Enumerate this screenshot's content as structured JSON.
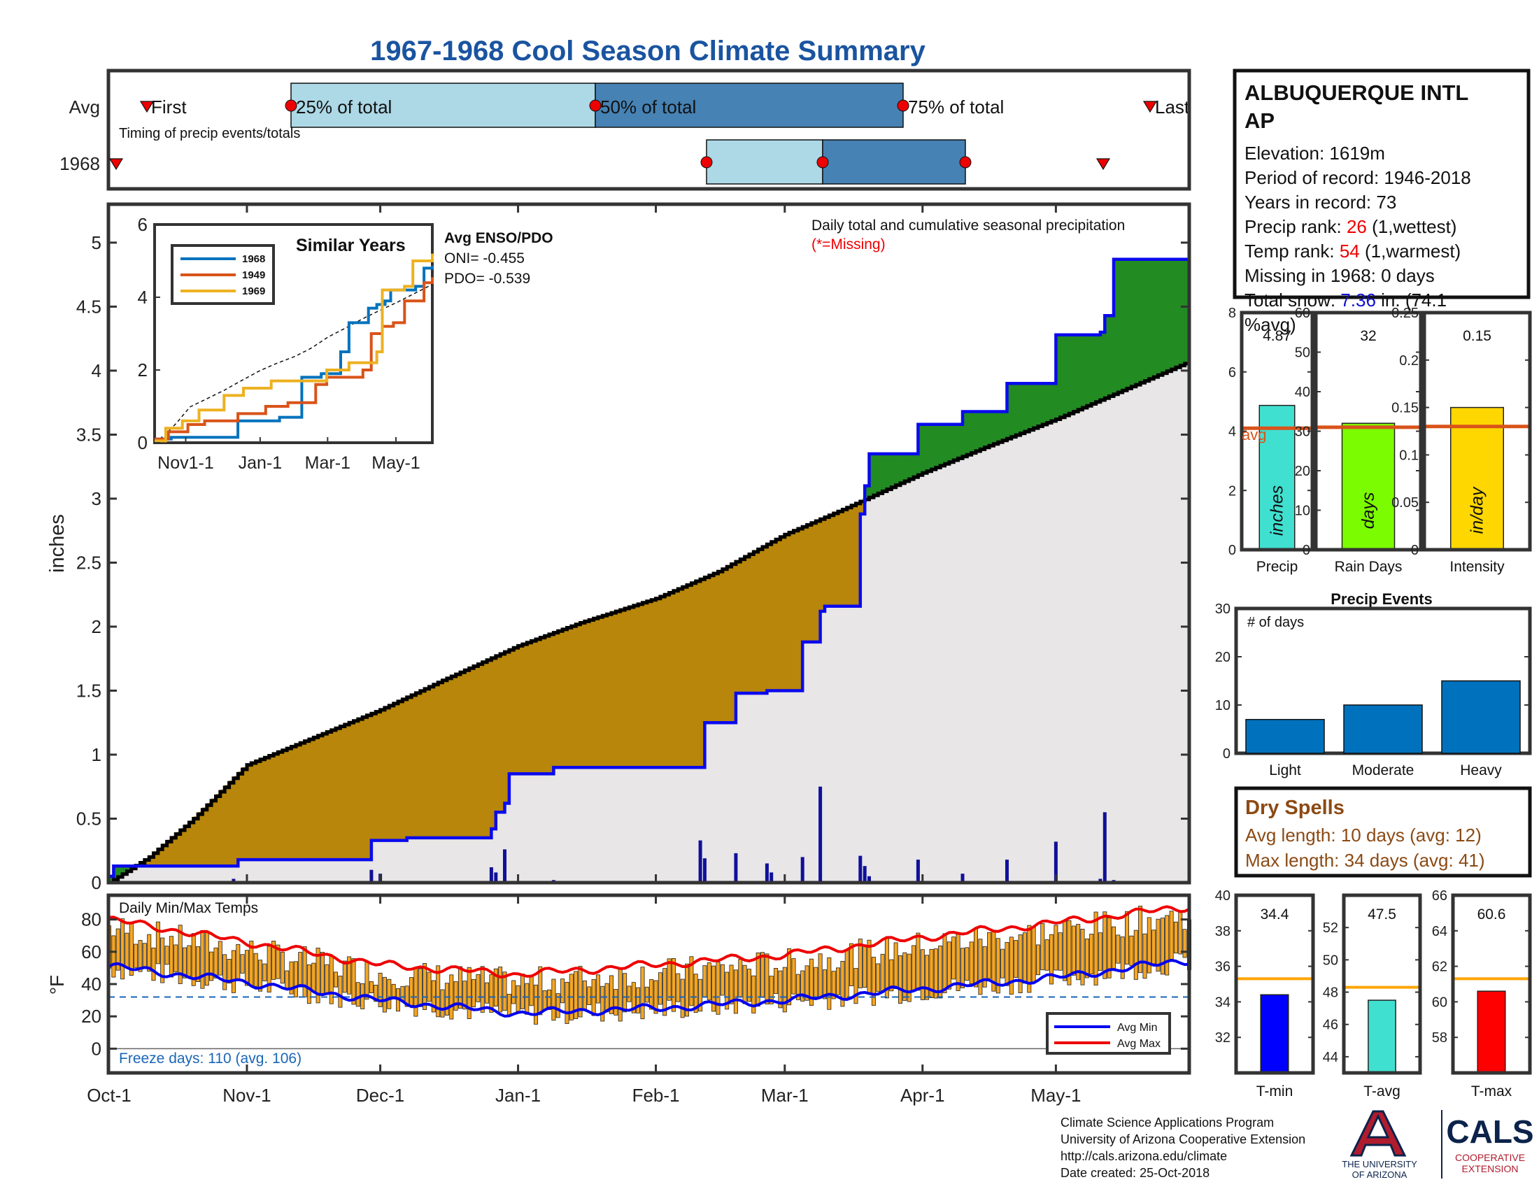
{
  "title": "1967-1968 Cool Season Climate Summary",
  "station": {
    "name_line1": "ALBUQUERQUE INTL",
    "name_line2": "AP",
    "elevation": "Elevation: 1619m",
    "period": "Period of record: 1946-2018",
    "years": "Years in record: 73",
    "precip_rank_label": "Precip rank: ",
    "precip_rank_value": "26",
    "precip_rank_suffix": " (1,wettest)",
    "temp_rank_label": "Temp rank: ",
    "temp_rank_value": "54",
    "temp_rank_suffix": " (1,warmest)",
    "missing": "Missing in 1968: 0 days",
    "snow_label": "Total snow: ",
    "snow_value": "7.36",
    "snow_suffix": " in. (74.1",
    "snow_line2": "%avg)"
  },
  "timing": {
    "row_avg": "Avg",
    "row_year": "1968",
    "first": "First",
    "p25": "25% of total",
    "p50": "50% of total",
    "p75": "75% of total",
    "last": "Last",
    "caption": "Timing of precip events/totals"
  },
  "main": {
    "ylabel": "inches",
    "title": "Daily total and cumulative seasonal precipitation",
    "missing_note": "(*=Missing)",
    "enso_title": "Avg ENSO/PDO",
    "oni": "ONI= -0.455",
    "pdo": "PDO= -0.539"
  },
  "inset": {
    "title": "Similar Years",
    "legend": [
      "1968",
      "1949",
      "1969"
    ],
    "colors": [
      "#0072BD",
      "#D95319",
      "#EDB120"
    ],
    "yticks": [
      "0",
      "2",
      "4",
      "6"
    ],
    "xticks": [
      "Nov1-1",
      "Jan-1",
      "Mar-1",
      "May-1"
    ]
  },
  "bars_top": {
    "precip_label": "Precip",
    "precip_value": "4.87",
    "precip_unit": "inches",
    "rain_label": "Rain Days",
    "rain_value": "32",
    "rain_unit": "days",
    "int_label": "Intensity",
    "int_value": "0.15",
    "int_unit": "in/day",
    "avg_label": "avg"
  },
  "events": {
    "title": "Precip Events",
    "ylabel": "# of days"
  },
  "dry": {
    "title": "Dry Spells",
    "avg": "Avg length: 10 days (avg: 12)",
    "max": "Max length: 34 days (avg: 41)"
  },
  "temps": {
    "title": "Daily Min/Max Temps",
    "ylabel": "°F",
    "freeze": "Freeze days: 110 (avg. 106)",
    "legend_min": "Avg Min",
    "legend_max": "Avg Max"
  },
  "tbars": {
    "tmin_label": "T-min",
    "tmin_value": "34.4",
    "tavg_label": "T-avg",
    "tavg_value": "47.5",
    "tmax_label": "T-max",
    "tmax_value": "60.6"
  },
  "footer": {
    "line1": "Climate Science Applications Program",
    "line2": "University of Arizona Cooperative Extension",
    "line3": "http://cals.arizona.edu/climate",
    "line4": " Date created: 25-Oct-2018",
    "ua1": "THE UNIVERSITY",
    "ua2": "OF ARIZONA",
    "cals": "CALS",
    "coop1": "COOPERATIVE",
    "coop2": "EXTENSION"
  },
  "chart_data": [
    {
      "type": "area",
      "title": "Daily total and cumulative seasonal precipitation",
      "ylabel": "inches",
      "x_ticks": [
        "Oct-1",
        "Nov-1",
        "Dec-1",
        "Jan-1",
        "Feb-1",
        "Mar-1",
        "Apr-1",
        "May-1"
      ],
      "yticks": [
        "0",
        "0.5",
        "1",
        "1.5",
        "2",
        "2.5",
        "3",
        "3.5",
        "4",
        "4.5",
        "5"
      ],
      "ylim": [
        0,
        5.3
      ],
      "xlim_days": [
        0,
        243
      ],
      "series": [
        {
          "name": "",
          "kind": "average cumulative",
          "x_dates": [
            "Oct-1",
            "Oct-10",
            "Oct-20",
            "Nov-1",
            "Nov-15",
            "Dec-1",
            "Dec-15",
            "Jan-1",
            "Jan-15",
            "Feb-1",
            "Feb-15",
            "Mar-1",
            "Mar-15",
            "Apr-1",
            "Apr-15",
            "May-1",
            "May-15",
            "May-31"
          ],
          "y": [
            0,
            0.2,
            0.5,
            0.92,
            1.12,
            1.35,
            1.58,
            1.85,
            2.03,
            2.22,
            2.43,
            2.72,
            2.93,
            3.2,
            3.4,
            3.62,
            3.83,
            4.07
          ]
        },
        {
          "name": "1968",
          "kind": "observed cumulative (step)",
          "x_dates": [
            "Oct-1",
            "Oct-2",
            "Oct-30",
            "Nov-29",
            "Dec-7",
            "Dec-26",
            "Dec-27",
            "Dec-29",
            "Dec-30",
            "Jan-1",
            "Jan-9",
            "Feb-11",
            "Feb-12",
            "Feb-19",
            "Feb-26",
            "Mar-5",
            "Mar-9",
            "Mar-10",
            "Mar-18",
            "Mar-19",
            "Mar-20",
            "Mar-31",
            "Apr-10",
            "Apr-20",
            "May-1",
            "May-11",
            "May-12",
            "May-14"
          ],
          "y": [
            0.05,
            0.13,
            0.18,
            0.33,
            0.35,
            0.42,
            0.55,
            0.62,
            0.85,
            0.85,
            0.9,
            0.9,
            1.25,
            1.48,
            1.5,
            1.88,
            2.12,
            2.16,
            2.88,
            3.1,
            3.35,
            3.58,
            3.68,
            3.9,
            4.28,
            4.3,
            4.43,
            4.87
          ]
        },
        {
          "name": "",
          "kind": "daily precip bars",
          "x_dates": [
            "Oct-29",
            "Nov-29",
            "Dec-1",
            "Dec-26",
            "Dec-27",
            "Dec-29",
            "Feb-11",
            "Feb-12",
            "Feb-19",
            "Feb-26",
            "Feb-27",
            "Mar-5",
            "Mar-9",
            "Mar-18",
            "Mar-19",
            "Mar-20",
            "Mar-31",
            "Apr-10",
            "Apr-20",
            "May-1",
            "May-11",
            "May-12",
            "May-14",
            "Jan-9"
          ],
          "y": [
            0.03,
            0.1,
            0.07,
            0.12,
            0.08,
            0.26,
            0.33,
            0.19,
            0.23,
            0.15,
            0.08,
            0.2,
            0.75,
            0.21,
            0.13,
            0.05,
            0.18,
            0.07,
            0.18,
            0.32,
            0.03,
            0.55,
            0.02,
            0.02
          ]
        }
      ]
    },
    {
      "type": "line",
      "title": "Similar Years",
      "yticks": [
        "0",
        "2",
        "4",
        "6"
      ],
      "x_ticks": [
        "Nov1-1",
        "Jan-1",
        "Mar-1",
        "May-1"
      ],
      "ylim": [
        0,
        6
      ],
      "series": [
        {
          "name": "1968",
          "y_end": 4.87
        },
        {
          "name": "1949",
          "y_end": 4.55
        },
        {
          "name": "1969",
          "y_end": 5.2
        }
      ]
    },
    {
      "type": "bar",
      "categories": [
        "Precip",
        "Rain Days",
        "Intensity"
      ],
      "values": [
        4.87,
        32,
        0.15
      ],
      "averages": [
        4.1,
        31,
        0.13
      ],
      "ylims": [
        [
          0,
          8
        ],
        [
          0,
          60
        ],
        [
          0,
          0.25
        ]
      ]
    },
    {
      "type": "bar",
      "title": "Precip Events",
      "ylabel": "# of days",
      "categories": [
        "Light",
        "Moderate",
        "Heavy"
      ],
      "values": [
        7,
        10,
        15
      ],
      "ylim": [
        0,
        30
      ],
      "yticks": [
        "0",
        "10",
        "20",
        "30"
      ]
    },
    {
      "type": "bar",
      "title": "Daily Min/Max Temps",
      "ylabel": "°F",
      "yticks": [
        "0",
        "20",
        "40",
        "60",
        "80"
      ],
      "ylim": [
        -15,
        95
      ],
      "freeze_line": 32,
      "series": [
        {
          "name": "Avg Min",
          "x_dates": [
            "Oct-1",
            "Nov-1",
            "Dec-1",
            "Jan-1",
            "Feb-1",
            "Mar-1",
            "Apr-1",
            "May-1",
            "May-31"
          ],
          "y": [
            51,
            41,
            30,
            22,
            25,
            30,
            37,
            44,
            55
          ]
        },
        {
          "name": "Avg Max",
          "x_dates": [
            "Oct-1",
            "Nov-1",
            "Dec-1",
            "Jan-1",
            "Feb-1",
            "Mar-1",
            "Apr-1",
            "May-1",
            "May-31"
          ],
          "y": [
            80,
            66,
            52,
            46,
            52,
            58,
            69,
            78,
            88
          ]
        }
      ]
    },
    {
      "type": "bar",
      "categories": [
        "T-min",
        "T-avg",
        "T-max"
      ],
      "values": [
        34.4,
        47.5,
        60.6
      ],
      "averages": [
        35.3,
        48.3,
        61.3
      ],
      "ylims": [
        [
          30,
          40
        ],
        [
          43,
          54
        ],
        [
          56,
          66
        ]
      ]
    }
  ]
}
